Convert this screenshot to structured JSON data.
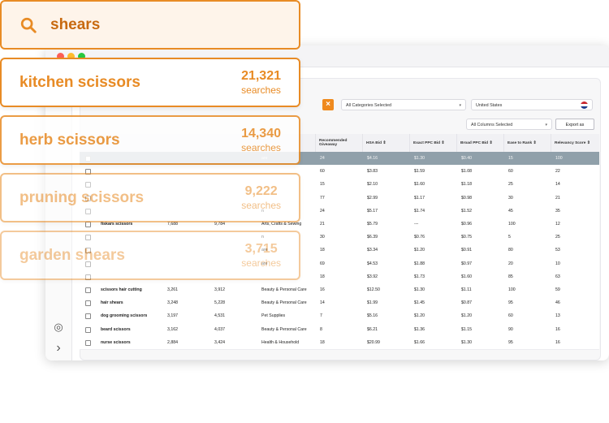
{
  "search": {
    "query": "shears"
  },
  "keyword_cards": [
    {
      "keyword": "kitchen scissors",
      "volume": "21,321",
      "unit": "searches"
    },
    {
      "keyword": "herb scissors",
      "volume": "14,340",
      "unit": "searches"
    },
    {
      "keyword": "pruning scissors",
      "volume": "9,222",
      "unit": "searches"
    },
    {
      "keyword": "garden shears",
      "volume": "3,715",
      "unit": "searches"
    }
  ],
  "filters": {
    "category": "All Categories Selected",
    "marketplace": "United States",
    "columns": "All Columns Selected",
    "export_label": "Export as .CSV"
  },
  "table": {
    "headers": [
      "Recommended Giveaway",
      "HSA Bid",
      "Exact PPC Bid",
      "Broad PPC Bid",
      "Ease to Rank",
      "Relevancy Score"
    ],
    "rows": [
      {
        "keyword": "",
        "v1": "",
        "v2": "",
        "cat": "are",
        "give": "24",
        "hsa": "$4.16",
        "exact": "$1.30",
        "broad": "$0.40",
        "ease": "15",
        "rel": "100"
      },
      {
        "keyword": "",
        "v1": "",
        "v2": "",
        "cat": "",
        "give": "60",
        "hsa": "$3.83",
        "exact": "$1.59",
        "broad": "$1.08",
        "ease": "60",
        "rel": "22"
      },
      {
        "keyword": "",
        "v1": "",
        "v2": "",
        "cat": "",
        "give": "15",
        "hsa": "$2.10",
        "exact": "$1.60",
        "broad": "$1.18",
        "ease": "25",
        "rel": "14"
      },
      {
        "keyword": "",
        "v1": "",
        "v2": "",
        "cat": "",
        "give": "77",
        "hsa": "$2.99",
        "exact": "$1.17",
        "broad": "$0.98",
        "ease": "30",
        "rel": "21"
      },
      {
        "keyword": "",
        "v1": "",
        "v2": "",
        "cat": "n",
        "give": "24",
        "hsa": "$5.17",
        "exact": "$1.74",
        "broad": "$1.52",
        "ease": "45",
        "rel": "35"
      },
      {
        "keyword": "fiskars scissors",
        "v1": "7,688",
        "v2": "9,784",
        "cat": "Arts, Crafts & Sewing",
        "give": "21",
        "hsa": "$5.79",
        "exact": "---",
        "broad": "$0.96",
        "ease": "100",
        "rel": "12"
      },
      {
        "keyword": "",
        "v1": "",
        "v2": "",
        "cat": "n",
        "give": "30",
        "hsa": "$6.39",
        "exact": "$0.76",
        "broad": "$0.75",
        "ease": "5",
        "rel": "25"
      },
      {
        "keyword": "",
        "v1": "",
        "v2": "",
        "cat": "are",
        "give": "18",
        "hsa": "$3.34",
        "exact": "$1.20",
        "broad": "$0.91",
        "ease": "80",
        "rel": "53"
      },
      {
        "keyword": "",
        "v1": "",
        "v2": "",
        "cat": "are",
        "give": "69",
        "hsa": "$4.53",
        "exact": "$1.88",
        "broad": "$0.97",
        "ease": "20",
        "rel": "10"
      },
      {
        "keyword": "",
        "v1": "",
        "v2": "",
        "cat": "",
        "give": "18",
        "hsa": "$3.92",
        "exact": "$1.73",
        "broad": "$1.60",
        "ease": "85",
        "rel": "63"
      },
      {
        "keyword": "scissors hair cutting",
        "v1": "3,261",
        "v2": "3,912",
        "cat": "Beauty & Personal Care",
        "give": "16",
        "hsa": "$12.50",
        "exact": "$1.30",
        "broad": "$1.11",
        "ease": "100",
        "rel": "59"
      },
      {
        "keyword": "hair shears",
        "v1": "3,248",
        "v2": "5,228",
        "cat": "Beauty & Personal Care",
        "give": "14",
        "hsa": "$1.99",
        "exact": "$1.45",
        "broad": "$0.87",
        "ease": "95",
        "rel": "46"
      },
      {
        "keyword": "dog grooming scissors",
        "v1": "3,197",
        "v2": "4,531",
        "cat": "Pet Supplies",
        "give": "7",
        "hsa": "$5.16",
        "exact": "$1.20",
        "broad": "$1.20",
        "ease": "60",
        "rel": "13"
      },
      {
        "keyword": "beard scissors",
        "v1": "3,162",
        "v2": "4,037",
        "cat": "Beauty & Personal Care",
        "give": "8",
        "hsa": "$6.21",
        "exact": "$1.36",
        "broad": "$1.15",
        "ease": "90",
        "rel": "16"
      },
      {
        "keyword": "nurse scissors",
        "v1": "2,884",
        "v2": "3,424",
        "cat": "Health & Household",
        "give": "18",
        "hsa": "$20.99",
        "exact": "$1.66",
        "broad": "$1.30",
        "ease": "95",
        "rel": "16"
      }
    ]
  },
  "colors": {
    "accent": "#e88b25",
    "selected_row": "#90a0aa",
    "export_btn": "#ef8a1e"
  }
}
